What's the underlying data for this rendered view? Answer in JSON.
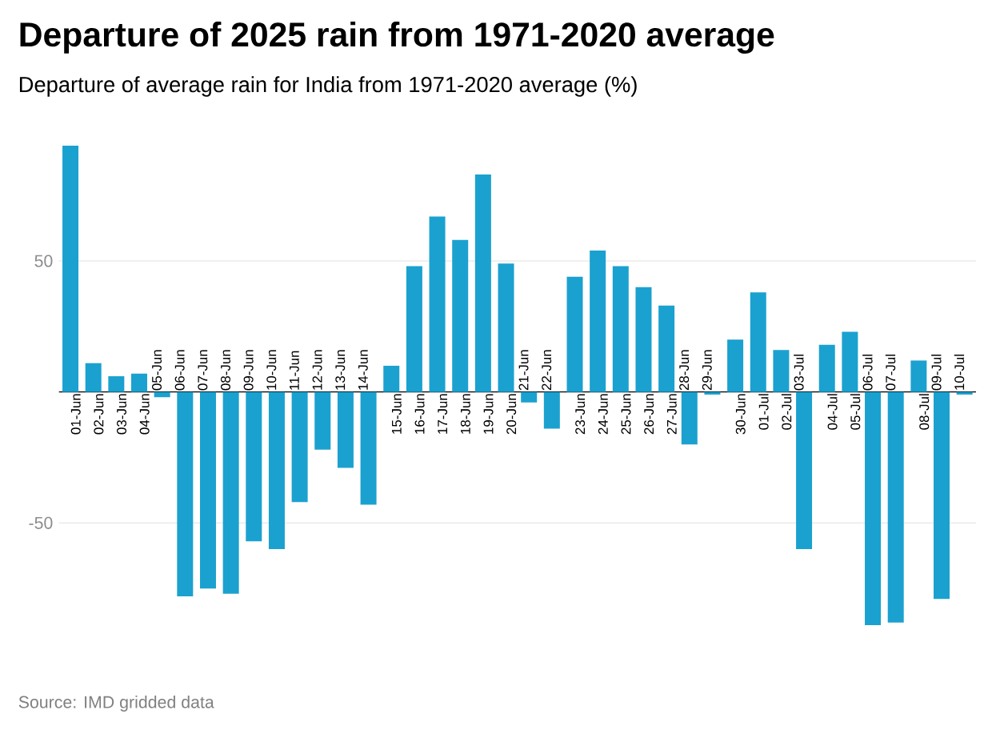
{
  "chart_data": {
    "type": "bar",
    "title": "Departure of 2025 rain from 1971-2020 average",
    "subtitle": "Departure of average rain for India from 1971-2020 average (%)",
    "categories": [
      "01-Jun",
      "02-Jun",
      "03-Jun",
      "04-Jun",
      "05-Jun",
      "06-Jun",
      "07-Jun",
      "08-Jun",
      "09-Jun",
      "10-Jun",
      "11-Jun",
      "12-Jun",
      "13-Jun",
      "14-Jun",
      "15-Jun",
      "16-Jun",
      "17-Jun",
      "18-Jun",
      "19-Jun",
      "20-Jun",
      "21-Jun",
      "22-Jun",
      "23-Jun",
      "24-Jun",
      "25-Jun",
      "26-Jun",
      "27-Jun",
      "28-Jun",
      "29-Jun",
      "30-Jun",
      "01-Jul",
      "02-Jul",
      "03-Jul",
      "04-Jul",
      "05-Jul",
      "06-Jul",
      "07-Jul",
      "08-Jul",
      "09-Jul",
      "10-Jul"
    ],
    "values": [
      94,
      11,
      6,
      7,
      -2,
      -78,
      -75,
      -77,
      -57,
      -60,
      -42,
      -22,
      -29,
      -43,
      10,
      48,
      67,
      58,
      83,
      49,
      -4,
      -14,
      44,
      54,
      48,
      40,
      33,
      -20,
      -1,
      20,
      38,
      16,
      -60,
      18,
      23,
      -89,
      -88,
      12,
      -79,
      -1
    ],
    "color": "#1ba1cf",
    "ylim": [
      -89,
      94
    ],
    "yticks": [
      -50,
      50
    ],
    "grid": "y",
    "annotations": [
      "Source: IMD gridded data"
    ]
  }
}
